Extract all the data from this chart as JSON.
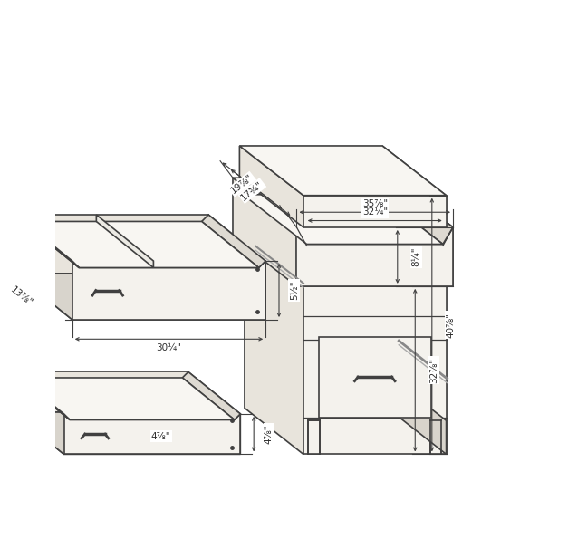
{
  "bg_color": "#ffffff",
  "line_color": "#404040",
  "annotations": {
    "top_depth1": "19⅞\"",
    "top_depth2": "17¾\"",
    "top_width1": "35⅞\"",
    "top_width2": "32¼\"",
    "height_top": "8¼\"",
    "height_body": "32⅞\"",
    "height_total": "40⅞\"",
    "drawer1_depth": "13⅞\"",
    "drawer1_width": "30¼\"",
    "drawer1_height": "5½\"",
    "drawer2_height": "4⅞\""
  },
  "colors": {
    "face_front": "#f4f2ed",
    "face_side": "#e8e4dc",
    "face_top": "#f8f6f2",
    "face_dark": "#d8d4cc",
    "face_inner": "#eceae4",
    "lc": "#404040"
  }
}
